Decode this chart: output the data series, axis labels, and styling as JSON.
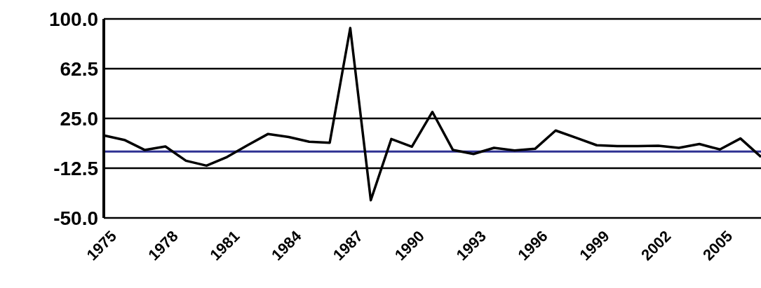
{
  "chart_data": {
    "type": "line",
    "categories": [
      "1975",
      null,
      null,
      "1978",
      null,
      null,
      "1981",
      null,
      null,
      "1984",
      null,
      null,
      "1987",
      null,
      null,
      "1990",
      null,
      null,
      "1993",
      null,
      null,
      "1996",
      null,
      null,
      "1999",
      null,
      null,
      "2002",
      null,
      null,
      "2005",
      null,
      null
    ],
    "series": [
      {
        "color": "#000000",
        "values": [
          12.2,
          8.8,
          1.2,
          3.9,
          -6.9,
          -10.6,
          -4.1,
          4.8,
          13.3,
          11.0,
          7.4,
          6.7,
          93.1,
          -36.7,
          9.5,
          3.7,
          29.9,
          1.2,
          -1.8,
          2.8,
          0.9,
          2.1,
          15.9,
          10.4,
          4.8,
          4.1,
          4.1,
          4.4,
          2.8,
          5.7,
          1.6,
          9.9,
          -4
        ]
      }
    ],
    "ylim": [
      -50,
      100
    ],
    "yticks": [
      {
        "value": -50,
        "label": "-50.0"
      },
      -12.5,
      {
        "value": 25,
        "label": "25.0"
      },
      62.5,
      {
        "value": 100,
        "label": "100.0"
      }
    ],
    "ref_lines": [
      {
        "axis": "y",
        "value": 0,
        "color": "#2e3192"
      }
    ],
    "grid": "y",
    "legend": false,
    "marker": "none",
    "line_style": "solid"
  }
}
